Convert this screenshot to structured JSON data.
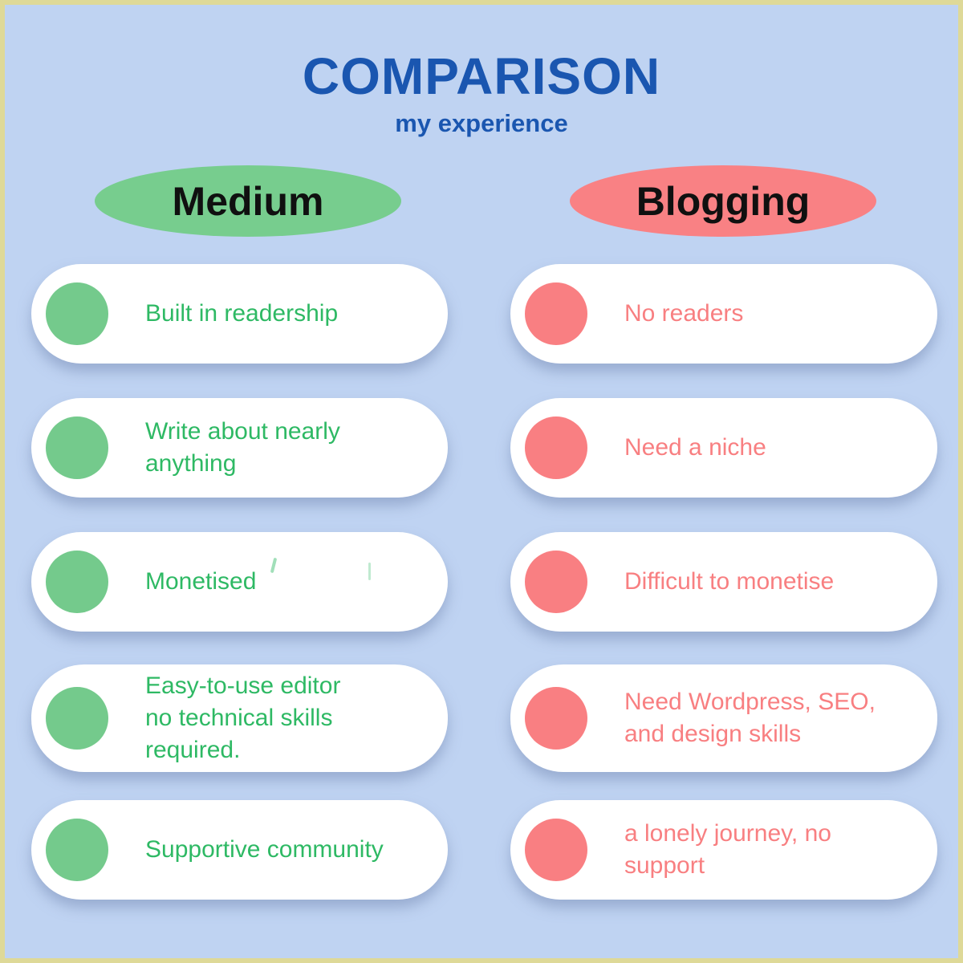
{
  "header": {
    "title": "COMPARISON",
    "subtitle": "my experience"
  },
  "columns": [
    {
      "header": "Medium",
      "items": [
        {
          "text": "Built in readership"
        },
        {
          "text": "Write about nearly\nanything"
        },
        {
          "text": "Monetised"
        },
        {
          "text": "Easy-to-use editor\nno technical skills\nrequired."
        },
        {
          "text": "Supportive community"
        }
      ]
    },
    {
      "header": "Blogging",
      "items": [
        {
          "text": "No readers"
        },
        {
          "text": "Need a niche"
        },
        {
          "text": "Difficult to monetise"
        },
        {
          "text": "Need Wordpress, SEO,\nand design skills"
        },
        {
          "text": "a lonely journey, no\nsupport"
        }
      ]
    }
  ],
  "colors": {
    "background": "#bfd3f2",
    "frame_border": "#ded998",
    "title_blue": "#1a56b0",
    "medium_green_fill": "#77cd8e",
    "medium_green_text": "#2eb964",
    "blogging_red_fill": "#f98184",
    "blogging_red_text": "#f87f81",
    "card_white": "#ffffff",
    "header_text_black": "#101010"
  }
}
